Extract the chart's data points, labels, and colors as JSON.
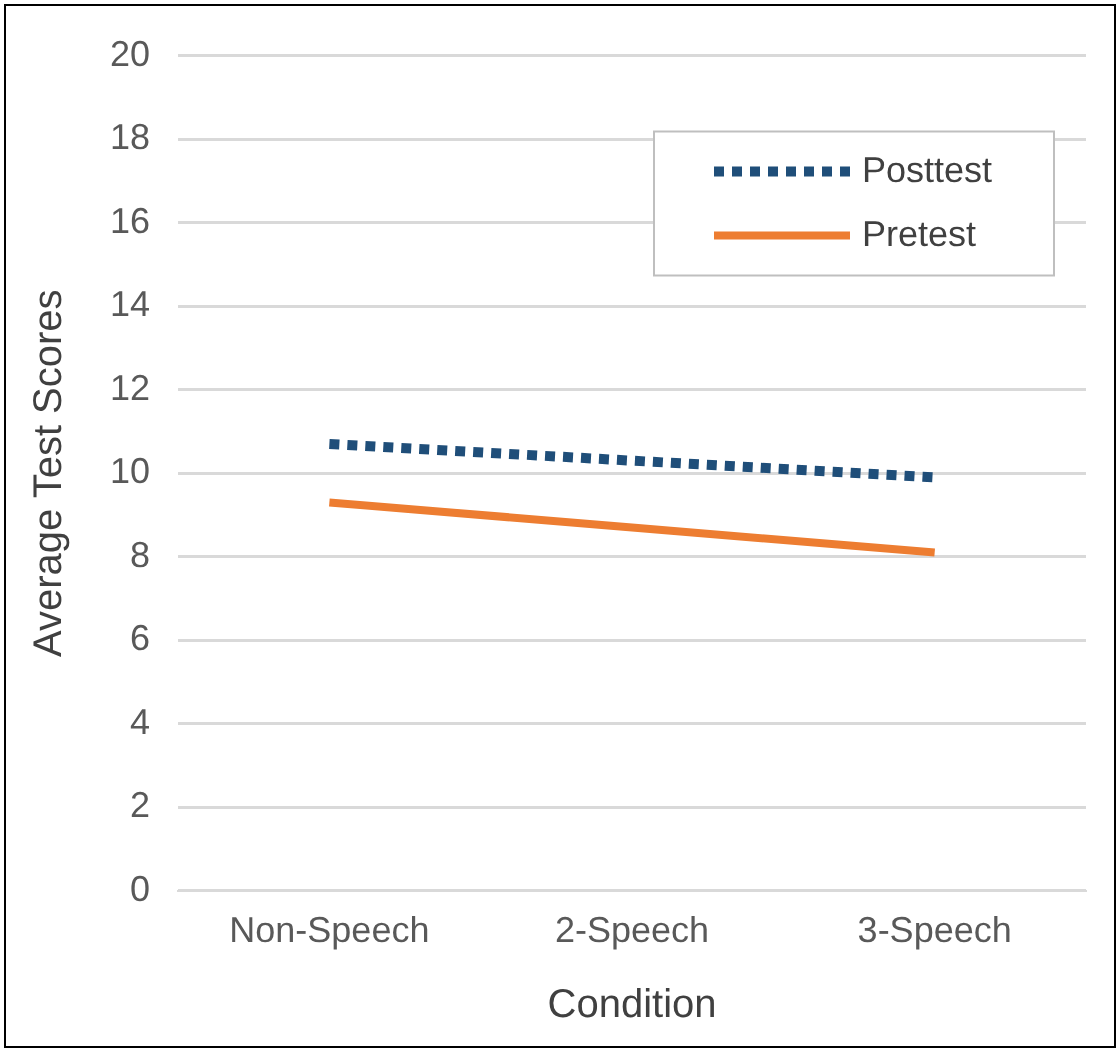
{
  "chart_data": {
    "type": "line",
    "xlabel": "Condition",
    "ylabel": "Average Test Scores",
    "categories": [
      "Non-Speech",
      "2-Speech",
      "3-Speech"
    ],
    "series": [
      {
        "name": "Posttest",
        "color": "#1f4e79",
        "values": [
          10.7,
          10.3,
          9.9
        ],
        "line_style": "dotted"
      },
      {
        "name": "Pretest",
        "color": "#ed7d31",
        "values": [
          9.3,
          8.7,
          8.1
        ],
        "line_style": "solid"
      }
    ],
    "ylim": [
      0,
      20
    ],
    "yticks": [
      0,
      2,
      4,
      6,
      8,
      10,
      12,
      14,
      16,
      18,
      20
    ],
    "grid": "y",
    "legend": "top right",
    "marker": "none"
  }
}
